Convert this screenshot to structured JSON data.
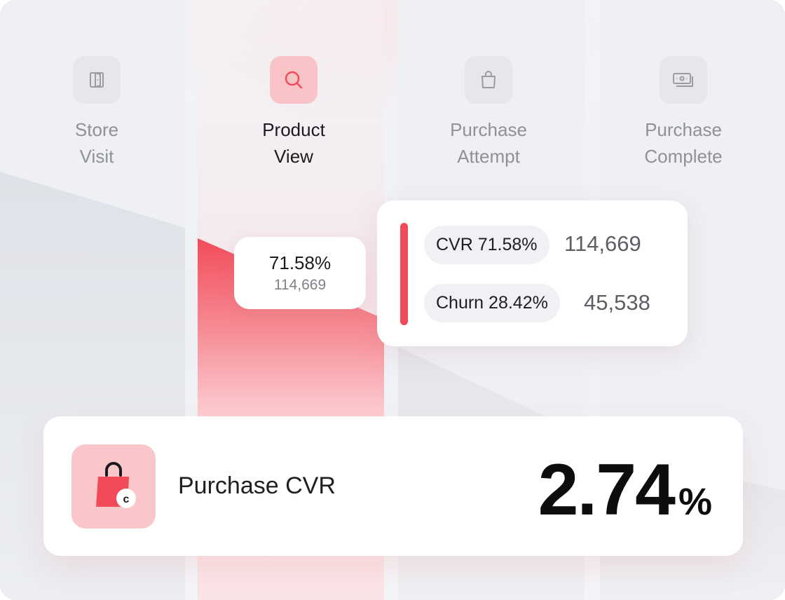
{
  "stages": [
    {
      "label": "Store\nVisit",
      "icon": "door-icon"
    },
    {
      "label": "Product\nView",
      "icon": "search-icon",
      "active": true
    },
    {
      "label": "Purchase\nAttempt",
      "icon": "shopping-bag-icon"
    },
    {
      "label": "Purchase\nComplete",
      "icon": "cash-icon"
    }
  ],
  "tooltip": {
    "percent": "71.58%",
    "count": "114,669"
  },
  "detail": {
    "cvr_label": "CVR 71.58%",
    "cvr_value": "114,669",
    "churn_label": "Churn 28.42%",
    "churn_value": "45,538"
  },
  "summary": {
    "label": "Purchase CVR",
    "value": "2.74",
    "unit": "%",
    "icon": "shopping-bag-coin-icon"
  },
  "colors": {
    "accent": "#f14a58",
    "accent_light": "#f9c4c8",
    "icon_bg": "#e6e7eb"
  }
}
